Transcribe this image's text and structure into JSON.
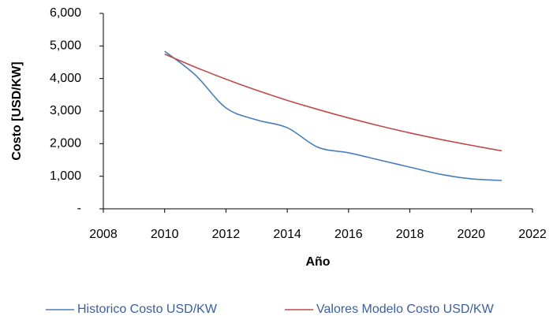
{
  "chart_data": {
    "type": "line",
    "x_label": "Año",
    "y_label": "Costo [USD/KW]",
    "x": [
      2010,
      2011,
      2012,
      2013,
      2014,
      2015,
      2016,
      2017,
      2018,
      2019,
      2020,
      2021
    ],
    "series": [
      {
        "name": "Historico Costo USD/KW",
        "color": "#4a7ebb",
        "values": [
          4840,
          4110,
          3100,
          2730,
          2490,
          1890,
          1720,
          1500,
          1280,
          1060,
          920,
          870
        ]
      },
      {
        "name": "Valores Modelo Costo USD/KW",
        "color": "#be4b48",
        "values": [
          4750,
          4350,
          3980,
          3640,
          3330,
          3050,
          2790,
          2550,
          2330,
          2130,
          1950,
          1780
        ]
      }
    ],
    "xlim": [
      2008,
      2022
    ],
    "xticks": [
      2008,
      2010,
      2012,
      2014,
      2016,
      2018,
      2020,
      2022
    ],
    "ylim": [
      0,
      6000
    ],
    "yticks": [
      {
        "value": 0,
        "label": "-"
      },
      {
        "value": 1000,
        "label": "1,000"
      },
      {
        "value": 2000,
        "label": "2,000"
      },
      {
        "value": 3000,
        "label": "3,000"
      },
      {
        "value": 4000,
        "label": "4,000"
      },
      {
        "value": 5000,
        "label": "5,000"
      },
      {
        "value": 6000,
        "label": "6,000"
      }
    ],
    "grid": false,
    "legend": "bottom"
  }
}
